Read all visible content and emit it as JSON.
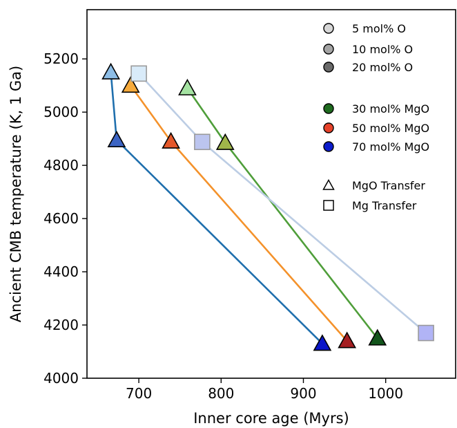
{
  "chart_data": {
    "type": "scatter",
    "xlabel": "Inner core age (Myrs)",
    "ylabel": "Ancient CMB temperature (K, 1 Ga)",
    "xlim": [
      637,
      1085
    ],
    "ylim": [
      4000,
      5385
    ],
    "xticks": [
      700,
      800,
      900,
      1000
    ],
    "yticks": [
      4000,
      4200,
      4400,
      4600,
      4800,
      5000,
      5200
    ],
    "grid": false,
    "legend_placement": "top-right",
    "series": [
      {
        "line_color": "#1f6fad",
        "marker": "triangle",
        "x": [
          666,
          673,
          923
        ],
        "y": [
          5150,
          4895,
          4130
        ],
        "point_colors": [
          "#8dbde6",
          "#3b64c4",
          "#0a16c8"
        ]
      },
      {
        "line_color": "#f4922b",
        "marker": "triangle",
        "x": [
          690,
          739,
          953
        ],
        "y": [
          5100,
          4890,
          4140
        ],
        "point_colors": [
          "#f7ab3c",
          "#e4582a",
          "#a51f22"
        ]
      },
      {
        "line_color": "#4f9e3a",
        "marker": "triangle",
        "x": [
          759,
          805,
          990
        ],
        "y": [
          5090,
          4885,
          4150
        ],
        "point_colors": [
          "#a5e3a2",
          "#a0b64a",
          "#12541b"
        ]
      },
      {
        "line_color": "#bccde4",
        "marker": "square",
        "x": [
          700,
          777,
          1049
        ],
        "y": [
          5145,
          4888,
          4170
        ],
        "point_colors": [
          "#d9ebf9",
          "#bcc5ef",
          "#b1b4f6"
        ]
      }
    ],
    "legend": [
      {
        "label": "5 mol% O",
        "marker": "circle",
        "color": "#d6d6d6"
      },
      {
        "label": "10 mol% O",
        "marker": "circle",
        "color": "#a4a4a4"
      },
      {
        "label": "20 mol% O",
        "marker": "circle",
        "color": "#6a6a6a"
      },
      {
        "label": "30 mol% MgO",
        "marker": "circle",
        "color": "#1f6b1f"
      },
      {
        "label": "50 mol% MgO",
        "marker": "circle",
        "color": "#e6422a"
      },
      {
        "label": "70 mol% MgO",
        "marker": "circle",
        "color": "#0c1ccc"
      },
      {
        "label": "MgO Transfer",
        "marker": "triangle",
        "color": "#ffffff"
      },
      {
        "label": "Mg Transfer",
        "marker": "square",
        "color": "#ffffff"
      }
    ]
  }
}
